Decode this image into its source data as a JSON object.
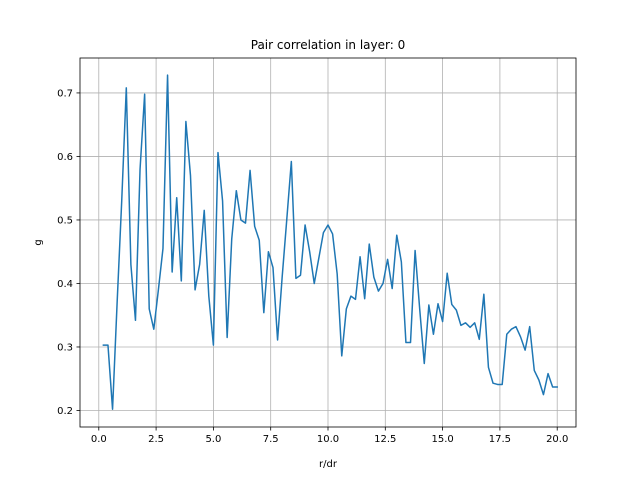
{
  "chart_data": {
    "type": "line",
    "title": "Pair correlation in layer: 0",
    "xlabel": "r/dr",
    "ylabel": "g",
    "xlim": [
      -0.82,
      20.82
    ],
    "ylim": [
      0.174,
      0.755
    ],
    "xticks": [
      0.0,
      2.5,
      5.0,
      7.5,
      10.0,
      12.5,
      15.0,
      17.5,
      20.0
    ],
    "xtick_labels": [
      "0.0",
      "2.5",
      "5.0",
      "7.5",
      "10.0",
      "12.5",
      "15.0",
      "17.5",
      "20.0"
    ],
    "yticks": [
      0.2,
      0.3,
      0.4,
      0.5,
      0.6,
      0.7
    ],
    "ytick_labels": [
      "0.2",
      "0.3",
      "0.4",
      "0.5",
      "0.6",
      "0.7"
    ],
    "grid": true,
    "colors": {
      "line": "#1f77b4",
      "grid": "#b0b0b0"
    },
    "series": [
      {
        "x": [
          0.2,
          0.4,
          0.6,
          0.8,
          1.0,
          1.2,
          1.4,
          1.6,
          1.8,
          2.0,
          2.2,
          2.4,
          2.6,
          2.8,
          3.0,
          3.2,
          3.4,
          3.6,
          3.8,
          4.0,
          4.2,
          4.4,
          4.6,
          4.8,
          5.0,
          5.2,
          5.4,
          5.6,
          5.8,
          6.0,
          6.2,
          6.4,
          6.6,
          6.8,
          7.0,
          7.2,
          7.4,
          7.6,
          7.8,
          8.0,
          8.2,
          8.4,
          8.6,
          8.8,
          9.0,
          9.2,
          9.4,
          9.6,
          9.8,
          10.0,
          10.2,
          10.4,
          10.6,
          10.8,
          11.0,
          11.2,
          11.4,
          11.6,
          11.8,
          12.0,
          12.2,
          12.4,
          12.6,
          12.8,
          13.0,
          13.2,
          13.4,
          13.6,
          13.8,
          14.0,
          14.2,
          14.4,
          14.6,
          14.8,
          15.0,
          15.2,
          15.4,
          15.6,
          15.8,
          16.0,
          16.2,
          16.4,
          16.6,
          16.8,
          17.0,
          17.2,
          17.4,
          17.6,
          17.8,
          18.0,
          18.2,
          18.4,
          18.6,
          18.8,
          19.0,
          19.2,
          19.4,
          19.6,
          19.8,
          20.0
        ],
        "values": [
          0.303,
          0.303,
          0.202,
          0.37,
          0.53,
          0.708,
          0.43,
          0.342,
          0.58,
          0.698,
          0.36,
          0.328,
          0.39,
          0.455,
          0.728,
          0.418,
          0.535,
          0.404,
          0.655,
          0.57,
          0.39,
          0.43,
          0.515,
          0.38,
          0.303,
          0.606,
          0.53,
          0.315,
          0.47,
          0.546,
          0.5,
          0.495,
          0.578,
          0.49,
          0.468,
          0.354,
          0.45,
          0.425,
          0.311,
          0.41,
          0.5,
          0.592,
          0.408,
          0.413,
          0.492,
          0.45,
          0.4,
          0.44,
          0.48,
          0.492,
          0.478,
          0.415,
          0.286,
          0.36,
          0.38,
          0.375,
          0.442,
          0.376,
          0.462,
          0.41,
          0.388,
          0.4,
          0.438,
          0.392,
          0.476,
          0.434,
          0.307,
          0.307,
          0.452,
          0.36,
          0.274,
          0.366,
          0.32,
          0.368,
          0.34,
          0.416,
          0.367,
          0.358,
          0.334,
          0.338,
          0.331,
          0.338,
          0.312,
          0.383,
          0.268,
          0.243,
          0.241,
          0.241,
          0.32,
          0.328,
          0.332,
          0.316,
          0.295,
          0.332,
          0.263,
          0.248,
          0.225,
          0.258,
          0.237,
          0.237
        ]
      }
    ]
  }
}
